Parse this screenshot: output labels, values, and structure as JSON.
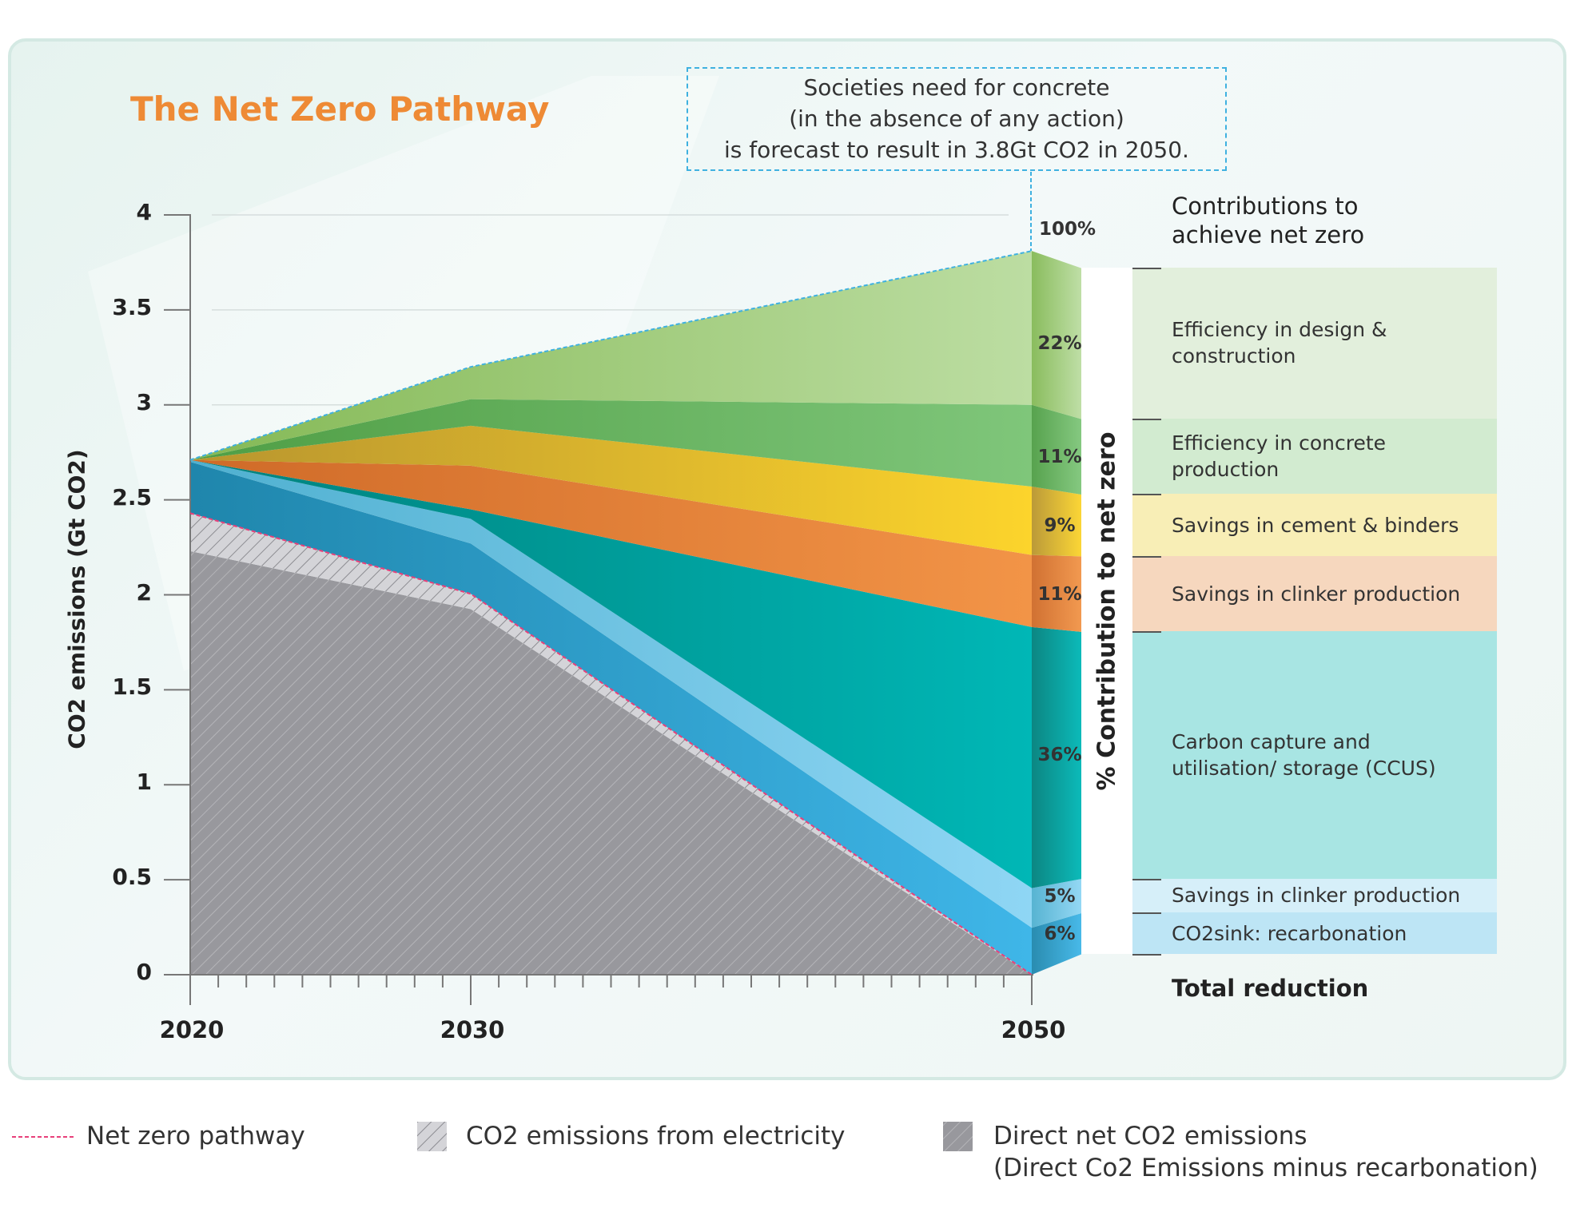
{
  "title": "The Net Zero Pathway",
  "callout": {
    "lines": [
      "Societies need for concrete",
      "(in the absence of any action)",
      "is forecast to result in 3.8Gt CO2 in 2050."
    ]
  },
  "contributions_heading": [
    "Contributions to",
    "achieve net zero"
  ],
  "bar_label": "% Contribution to net zero",
  "total_label": "Total reduction",
  "top_percent": "100%",
  "legend": {
    "net_zero": "Net zero pathway",
    "electricity": "CO2 emissions from electricity",
    "direct": [
      "Direct net CO2 emissions",
      "(Direct Co2 Emissions minus recarbonation)"
    ]
  },
  "chart_data": {
    "type": "area",
    "stacked": true,
    "title": "The Net Zero Pathway",
    "xlabel": "",
    "ylabel": "CO2 emissions (Gt CO2)",
    "x": [
      2020,
      2030,
      2050
    ],
    "x_ticks": [
      "2020",
      "2030",
      "2050"
    ],
    "y_ticks": [
      "0",
      "0.5",
      "1",
      "1.5",
      "2",
      "2.5",
      "3",
      "3.5",
      "4"
    ],
    "ylim": [
      0,
      4
    ],
    "grid": true,
    "series": [
      {
        "name": "Direct net CO2 emissions",
        "values": [
          2.23,
          1.925,
          0
        ],
        "color": "#98989d",
        "pattern": "hatch"
      },
      {
        "name": "CO2 emissions from electricity",
        "values": [
          0.2,
          0.08,
          0
        ],
        "color": "#d2d2d6",
        "pattern": "hatch"
      },
      {
        "name": "CO2sink: recarbonation",
        "percent": "6%",
        "values": [
          0.27,
          0.265,
          0.247
        ],
        "color_from": "#1f86ac",
        "color_to": "#3fb6e8",
        "legend_bg": "#bde5f5"
      },
      {
        "name": "Savings in clinker production",
        "percent": "5%",
        "values": [
          0.01,
          0.13,
          0.209
        ],
        "color_from": "#4fb0d0",
        "color_to": "#8fd6f4",
        "legend_bg": "#d6eff9"
      },
      {
        "name": "Carbon capture and utilisation/ storage (CCUS)",
        "percent": "36%",
        "values": [
          0,
          0.05,
          1.374
        ],
        "color_from": "#00807c",
        "color_to": "#00b7b6",
        "legend_bg": "#a8e5e3"
      },
      {
        "name": "Savings in clinker production",
        "percent": "11%",
        "values": [
          0,
          0.23,
          0.38
        ],
        "color_from": "#cf6a28",
        "color_to": "#f29447",
        "legend_bg": "#f6d7be"
      },
      {
        "name": "Savings in cement & binders",
        "percent": "9%",
        "values": [
          0,
          0.21,
          0.36
        ],
        "color_from": "#b8952e",
        "color_to": "#fcd42c",
        "legend_bg": "#f8eeb6"
      },
      {
        "name": "Efficiency in concrete production",
        "percent": "11%",
        "values": [
          0,
          0.14,
          0.43
        ],
        "color_from": "#4f9e45",
        "color_to": "#7fc67a",
        "legend_bg": "#d2ebd0"
      },
      {
        "name": "Efficiency in design & construction",
        "percent": "22%",
        "values": [
          0,
          0.17,
          0.81
        ],
        "color_from": "#84b955",
        "color_to": "#bcdda2",
        "legend_bg": "#e2efdc"
      }
    ],
    "net_zero_pathway": [
      2.43,
      2.005,
      0
    ],
    "total_2050": 3.8
  }
}
